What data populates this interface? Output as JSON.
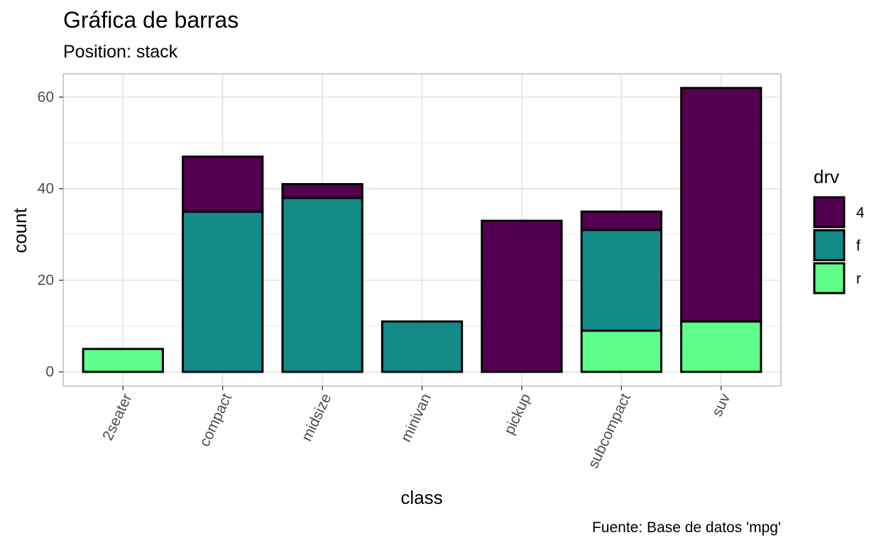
{
  "chart_data": {
    "type": "bar",
    "stacking": "stack",
    "title": "Gráfica de barras",
    "subtitle": "Position: stack",
    "xlabel": "class",
    "ylabel": "count",
    "caption": "Fuente: Base de datos 'mpg'",
    "categories": [
      "2seater",
      "compact",
      "midsize",
      "minivan",
      "pickup",
      "subcompact",
      "suv"
    ],
    "series": [
      {
        "name": "4",
        "color": "#540050",
        "values": [
          0,
          12,
          3,
          0,
          33,
          4,
          51
        ]
      },
      {
        "name": "f",
        "color": "#138b89",
        "values": [
          0,
          35,
          38,
          11,
          0,
          22,
          0
        ]
      },
      {
        "name": "r",
        "color": "#5eff8a",
        "values": [
          5,
          0,
          0,
          0,
          0,
          9,
          11
        ]
      }
    ],
    "ylim": [
      -3.1,
      65.1
    ],
    "yticks": [
      0,
      20,
      40,
      60
    ],
    "y_minor_ticks": [
      10,
      30,
      50
    ],
    "grid": true,
    "legend": {
      "title": "drv",
      "placement": "right",
      "entries": [
        "4",
        "f",
        "r"
      ]
    },
    "x_tick_label_rotation": "angled 65 degrees",
    "bar_outline_color": "#000000"
  }
}
